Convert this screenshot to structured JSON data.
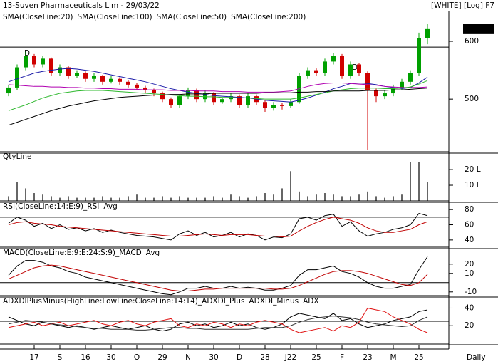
{
  "header": {
    "title": "13-Suven Pharmaceuticals Lim - 29/03/22",
    "mode": "[WHITE] [Log] F7"
  },
  "chart_data": [
    {
      "type": "candlestick",
      "categories": [
        null,
        null,
        null,
        "17",
        null,
        null,
        "S",
        null,
        null,
        "16",
        null,
        null,
        "30",
        null,
        null,
        "O",
        null,
        null,
        "29",
        null,
        null,
        "N",
        null,
        null,
        "30",
        null,
        null,
        "D",
        null,
        null,
        "28",
        null,
        null,
        "J22",
        null,
        null,
        "25",
        null,
        null,
        "F",
        null,
        null,
        "23",
        null,
        null,
        "M",
        null,
        null,
        "25",
        null
      ],
      "x_label": "Daily",
      "annotations": [
        "D",
        "D"
      ],
      "open": [
        510,
        520,
        555,
        575,
        560,
        570,
        545,
        555,
        540,
        545,
        535,
        540,
        530,
        535,
        530,
        525,
        520,
        515,
        510,
        500,
        490,
        505,
        515,
        500,
        510,
        495,
        500,
        505,
        490,
        505,
        495,
        485,
        490,
        488,
        495,
        540,
        550,
        545,
        565,
        575,
        540,
        560,
        545,
        515,
        505,
        510,
        520,
        530,
        545,
        605
      ],
      "high": [
        525,
        560,
        582,
        578,
        575,
        572,
        560,
        558,
        550,
        548,
        545,
        542,
        540,
        538,
        533,
        528,
        523,
        518,
        513,
        503,
        508,
        520,
        518,
        515,
        512,
        503,
        510,
        508,
        510,
        508,
        498,
        495,
        494,
        500,
        545,
        555,
        553,
        570,
        580,
        578,
        565,
        562,
        548,
        518,
        515,
        525,
        535,
        550,
        615,
        630
      ],
      "low": [
        505,
        515,
        550,
        555,
        555,
        540,
        540,
        535,
        537,
        530,
        530,
        525,
        527,
        525,
        520,
        515,
        510,
        505,
        495,
        485,
        485,
        500,
        495,
        495,
        490,
        492,
        495,
        485,
        485,
        490,
        478,
        480,
        482,
        485,
        492,
        535,
        540,
        540,
        560,
        535,
        535,
        540,
        412,
        495,
        500,
        505,
        515,
        525,
        540,
        595
      ],
      "close": [
        520,
        555,
        575,
        560,
        570,
        545,
        555,
        540,
        545,
        535,
        540,
        530,
        535,
        530,
        525,
        520,
        515,
        510,
        500,
        490,
        505,
        515,
        500,
        510,
        495,
        500,
        505,
        490,
        505,
        495,
        485,
        490,
        488,
        495,
        540,
        550,
        545,
        565,
        575,
        540,
        560,
        545,
        515,
        505,
        510,
        520,
        530,
        545,
        605,
        621.15
      ],
      "up_color": "#00a000",
      "down_color": "#d00000",
      "series": [
        {
          "name": "SMA(CloseLine:20)",
          "color": "#1a1aa8",
          "values": [
            530,
            535,
            540,
            545,
            548,
            550,
            552,
            553,
            552,
            550,
            548,
            545,
            542,
            539,
            536,
            533,
            530,
            526,
            522,
            518,
            515,
            512,
            510,
            508,
            506,
            505,
            504,
            503,
            502,
            500,
            498,
            497,
            496,
            495,
            498,
            502,
            507,
            512,
            518,
            522,
            527,
            528,
            527,
            525,
            522,
            520,
            518,
            520,
            528,
            538
          ]
        },
        {
          "name": "SMA(CloseLine:100)",
          "color": "#b000b0",
          "values": [
            525,
            524,
            523,
            522,
            522,
            521,
            521,
            520,
            520,
            519,
            519,
            518,
            518,
            517,
            517,
            517,
            516,
            516,
            516,
            515,
            515,
            515,
            514,
            514,
            514,
            513,
            513,
            513,
            512,
            512,
            512,
            512,
            513,
            514,
            518,
            522,
            525,
            527,
            528,
            528,
            527,
            526,
            525,
            524,
            522,
            521,
            520,
            520,
            520,
            521
          ]
        },
        {
          "name": "SMA(CloseLine:50)",
          "color": "#2eb82e",
          "values": [
            480,
            485,
            490,
            496,
            502,
            506,
            510,
            512,
            514,
            515,
            515,
            515,
            514,
            513,
            512,
            511,
            510,
            509,
            508,
            507,
            506,
            505,
            505,
            504,
            504,
            503,
            503,
            502,
            502,
            501,
            500,
            500,
            500,
            500,
            502,
            505,
            508,
            511,
            514,
            516,
            518,
            519,
            519,
            519,
            518,
            518,
            519,
            521,
            526,
            532
          ]
        },
        {
          "name": "SMA(CloseLine:200)",
          "color": "#000000",
          "values": [
            455,
            460,
            465,
            470,
            475,
            480,
            484,
            488,
            491,
            494,
            497,
            499,
            501,
            503,
            504,
            505,
            506,
            507,
            507,
            508,
            508,
            509,
            509,
            509,
            510,
            510,
            510,
            510,
            510,
            510,
            511,
            511,
            511,
            511,
            512,
            512,
            513,
            513,
            514,
            514,
            514,
            514,
            515,
            515,
            515,
            516,
            516,
            517,
            518,
            519
          ]
        }
      ],
      "level": 590,
      "ylim": [
        409,
        637
      ],
      "yticks": [
        500,
        600
      ]
    },
    {
      "type": "bar",
      "title": "QtyLine",
      "color": "#000000",
      "values": [
        3,
        12,
        8,
        5,
        4,
        3,
        2,
        3,
        2,
        2,
        2,
        3,
        2,
        2,
        3,
        4,
        2,
        2,
        3,
        2,
        3,
        2,
        2,
        2,
        3,
        2,
        4,
        3,
        2,
        3,
        5,
        4,
        8,
        19,
        6,
        3,
        4,
        5,
        4,
        3,
        3,
        4,
        6,
        3,
        2,
        3,
        4,
        25,
        25,
        12
      ],
      "ylim": [
        0,
        30.5
      ],
      "yticks": [
        {
          "value": 20,
          "label": "20 L"
        },
        {
          "value": 10,
          "label": "10 L"
        }
      ]
    },
    {
      "type": "line",
      "series": [
        {
          "name": "RSI(CloseLine:14:E:9)_RSI",
          "color": "#000000",
          "values": [
            62,
            70,
            66,
            58,
            62,
            55,
            60,
            54,
            56,
            52,
            55,
            50,
            53,
            50,
            48,
            46,
            45,
            44,
            42,
            40,
            48,
            52,
            46,
            50,
            44,
            46,
            50,
            44,
            48,
            46,
            40,
            44,
            43,
            48,
            68,
            70,
            66,
            72,
            74,
            58,
            64,
            52,
            45,
            48,
            50,
            54,
            56,
            60,
            75,
            72
          ]
        },
        {
          "name": "Avg",
          "color": "#c00000",
          "values": [
            60,
            63,
            64,
            62,
            61,
            60,
            58,
            57,
            56,
            55,
            54,
            53,
            52,
            51,
            50,
            49,
            48,
            47,
            46,
            45,
            45,
            46,
            47,
            48,
            47,
            46,
            47,
            47,
            47,
            46,
            45,
            45,
            44,
            45,
            52,
            58,
            63,
            67,
            70,
            68,
            66,
            62,
            56,
            52,
            50,
            50,
            52,
            54,
            60,
            64
          ]
        }
      ],
      "level": 70,
      "ylim": [
        30.5,
        88.6
      ],
      "yticks": [
        80,
        60,
        40
      ]
    },
    {
      "type": "line",
      "series": [
        {
          "name": "MACD(CloseLine:E:9:E:24:S:9)_MACD",
          "color": "#000000",
          "values": [
            8,
            18,
            24,
            24,
            22,
            18,
            16,
            12,
            10,
            6,
            4,
            2,
            0,
            -2,
            -4,
            -6,
            -8,
            -10,
            -12,
            -13,
            -10,
            -6,
            -6,
            -4,
            -6,
            -6,
            -4,
            -6,
            -5,
            -6,
            -8,
            -8,
            -6,
            -3,
            8,
            14,
            14,
            16,
            18,
            12,
            10,
            6,
            0,
            -4,
            -6,
            -6,
            -4,
            -2,
            14,
            28
          ]
        },
        {
          "name": "Avg",
          "color": "#c00000",
          "values": [
            4,
            8,
            12,
            16,
            18,
            19,
            18,
            16,
            14,
            12,
            10,
            8,
            6,
            4,
            2,
            0,
            -2,
            -4,
            -6,
            -8,
            -9,
            -9,
            -8,
            -7,
            -7,
            -6,
            -6,
            -6,
            -6,
            -6,
            -6,
            -7,
            -7,
            -6,
            -3,
            1,
            5,
            9,
            12,
            13,
            13,
            12,
            10,
            7,
            4,
            1,
            -2,
            -3,
            0,
            9
          ]
        }
      ],
      "level": 0,
      "ylim": [
        -14,
        36
      ],
      "yticks": [
        20,
        10,
        -10
      ]
    },
    {
      "type": "line",
      "series": [
        {
          "name": "ADXDIPlusMinus(HighLine:LowLine:CloseLine:14:14)_ADXDI_Plus",
          "color": "#000000",
          "values": [
            30,
            26,
            22,
            20,
            24,
            22,
            20,
            18,
            20,
            18,
            16,
            18,
            20,
            18,
            16,
            18,
            20,
            16,
            14,
            16,
            22,
            24,
            20,
            22,
            18,
            20,
            24,
            20,
            22,
            18,
            16,
            18,
            22,
            30,
            34,
            32,
            30,
            28,
            34,
            26,
            28,
            22,
            18,
            20,
            22,
            26,
            28,
            30,
            36,
            38
          ]
        },
        {
          "name": "ADXDI_Minus",
          "color": "#e01010",
          "values": [
            18,
            20,
            22,
            24,
            20,
            22,
            24,
            20,
            22,
            24,
            26,
            22,
            20,
            24,
            26,
            22,
            20,
            24,
            26,
            28,
            20,
            18,
            22,
            20,
            24,
            22,
            18,
            22,
            20,
            24,
            26,
            24,
            22,
            16,
            12,
            14,
            16,
            18,
            14,
            20,
            18,
            24,
            40,
            38,
            36,
            30,
            26,
            22,
            16,
            12
          ]
        },
        {
          "name": "ADX",
          "color": "#333333",
          "values": [
            22,
            24,
            26,
            25,
            24,
            22,
            21,
            20,
            19,
            18,
            17,
            17,
            16,
            16,
            16,
            15,
            15,
            16,
            17,
            18,
            18,
            17,
            17,
            16,
            16,
            16,
            16,
            16,
            16,
            17,
            18,
            18,
            18,
            20,
            24,
            27,
            29,
            30,
            31,
            30,
            29,
            27,
            24,
            22,
            21,
            20,
            19,
            20,
            26,
            30
          ]
        }
      ],
      "level": 25,
      "ylim": [
        0,
        51.7
      ],
      "yticks": [
        40,
        20
      ]
    }
  ]
}
